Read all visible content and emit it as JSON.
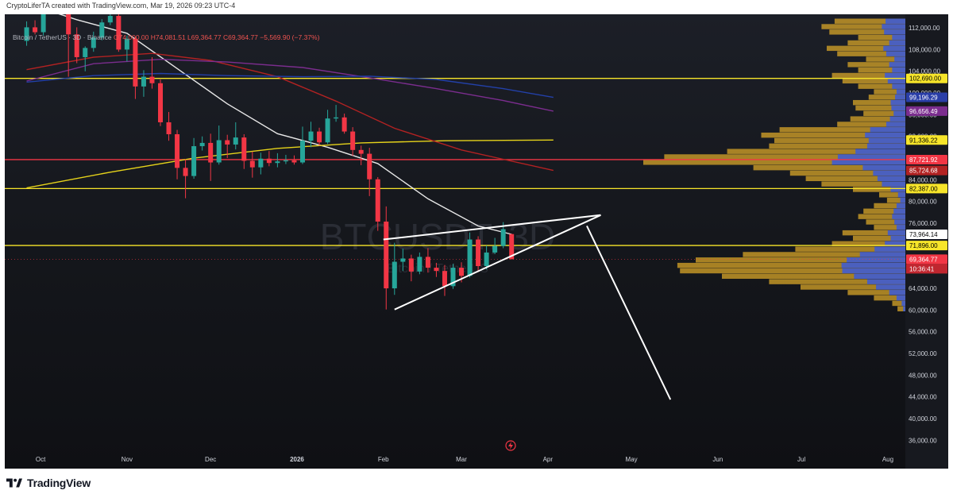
{
  "header": {
    "credit": "CryptoLiferTA created with TradingView.com, Mar 19, 2026 09:23 UTC-4"
  },
  "legend": {
    "symbol": "Bitcoin / TetherUS · 3D · Binance",
    "ohlc": "O74,000.00  H74,081.51  L69,364.77  C69,364.77  −5,569.90 (−7.37%)"
  },
  "watermark": {
    "ticker": "BTCUSDT, 3D",
    "subtitle": "Bitcoin / TetherUS"
  },
  "footer": {
    "brand": "TradingView"
  },
  "colors": {
    "bull": "#26a69a",
    "bear": "#f23645",
    "support_line": "#f7e52a",
    "red_line": "#f23645",
    "sma_white": "#e8e8e8",
    "ma_yellow": "#e6d31a",
    "ma_red": "#b22222",
    "ma_purple": "#7b2d8e",
    "ma_blue": "#2340a8",
    "volume_profile": "#d8a628",
    "volume_profile_blue": "#3b5bd9"
  },
  "chart_data": {
    "type": "candlestick",
    "symbol": "BTCUSDT",
    "timeframe": "3D",
    "exchange": "Binance",
    "x_labels": [
      {
        "label": "Oct",
        "date": "2025-10-01"
      },
      {
        "label": "Nov",
        "date": "2025-11-01"
      },
      {
        "label": "Dec",
        "date": "2025-12-01"
      },
      {
        "label": "2026",
        "date": "2026-01-01"
      },
      {
        "label": "Feb",
        "date": "2026-02-01"
      },
      {
        "label": "Mar",
        "date": "2026-03-01"
      },
      {
        "label": "Apr",
        "date": "2026-04-01"
      },
      {
        "label": "May",
        "date": "2026-05-01"
      },
      {
        "label": "Jun",
        "date": "2026-06-01"
      },
      {
        "label": "Jul",
        "date": "2026-07-01"
      },
      {
        "label": "Aug",
        "date": "2026-08-01"
      }
    ],
    "y_ticks": [
      112000,
      108000,
      104000,
      100000,
      96000,
      92000,
      88000,
      84000,
      80000,
      76000,
      72000,
      68000,
      64000,
      60000,
      56000,
      52000,
      48000,
      44000,
      40000,
      36000
    ],
    "ylim": [
      34000,
      114500
    ],
    "candles": [
      {
        "date": "2025-09-26",
        "o": 109600,
        "h": 113200,
        "l": 108700,
        "c": 112100
      },
      {
        "date": "2025-09-29",
        "o": 112100,
        "h": 113400,
        "l": 110800,
        "c": 111200
      },
      {
        "date": "2025-10-02",
        "o": 111200,
        "h": 117100,
        "l": 110600,
        "c": 116700
      },
      {
        "date": "2025-10-05",
        "o": 116700,
        "h": 117400,
        "l": 114900,
        "c": 116800
      },
      {
        "date": "2025-10-08",
        "o": 116800,
        "h": 118500,
        "l": 115200,
        "c": 115900
      },
      {
        "date": "2025-10-11",
        "o": 115900,
        "h": 116600,
        "l": 103000,
        "c": 110800
      },
      {
        "date": "2025-10-14",
        "o": 110800,
        "h": 112100,
        "l": 105500,
        "c": 106600
      },
      {
        "date": "2025-10-17",
        "o": 106600,
        "h": 108600,
        "l": 104000,
        "c": 108300
      },
      {
        "date": "2025-10-20",
        "o": 108300,
        "h": 111300,
        "l": 107600,
        "c": 110200
      },
      {
        "date": "2025-10-23",
        "o": 110200,
        "h": 113600,
        "l": 109700,
        "c": 113000
      },
      {
        "date": "2025-10-26",
        "o": 113000,
        "h": 116300,
        "l": 112500,
        "c": 114200
      },
      {
        "date": "2025-10-29",
        "o": 114200,
        "h": 115400,
        "l": 107600,
        "c": 108000
      },
      {
        "date": "2025-11-01",
        "o": 108000,
        "h": 110600,
        "l": 105800,
        "c": 110000
      },
      {
        "date": "2025-11-04",
        "o": 110000,
        "h": 110400,
        "l": 98900,
        "c": 101200
      },
      {
        "date": "2025-11-07",
        "o": 101200,
        "h": 104200,
        "l": 99300,
        "c": 103000
      },
      {
        "date": "2025-11-10",
        "o": 103000,
        "h": 106600,
        "l": 100800,
        "c": 101800
      },
      {
        "date": "2025-11-13",
        "o": 101800,
        "h": 102500,
        "l": 93900,
        "c": 94600
      },
      {
        "date": "2025-11-16",
        "o": 94600,
        "h": 96500,
        "l": 91200,
        "c": 92400
      },
      {
        "date": "2025-11-19",
        "o": 92400,
        "h": 93200,
        "l": 84100,
        "c": 86200
      },
      {
        "date": "2025-11-22",
        "o": 86200,
        "h": 87800,
        "l": 80600,
        "c": 84700
      },
      {
        "date": "2025-11-25",
        "o": 84700,
        "h": 91700,
        "l": 84200,
        "c": 90200
      },
      {
        "date": "2025-11-28",
        "o": 90200,
        "h": 92000,
        "l": 89400,
        "c": 90800
      },
      {
        "date": "2025-12-01",
        "o": 90800,
        "h": 92500,
        "l": 83800,
        "c": 87200
      },
      {
        "date": "2025-12-04",
        "o": 87200,
        "h": 94000,
        "l": 86800,
        "c": 91300
      },
      {
        "date": "2025-12-07",
        "o": 91300,
        "h": 92300,
        "l": 88000,
        "c": 90500
      },
      {
        "date": "2025-12-10",
        "o": 90500,
        "h": 94600,
        "l": 89600,
        "c": 91800
      },
      {
        "date": "2025-12-13",
        "o": 91800,
        "h": 92400,
        "l": 86000,
        "c": 87500
      },
      {
        "date": "2025-12-16",
        "o": 87500,
        "h": 89200,
        "l": 84400,
        "c": 86300
      },
      {
        "date": "2025-12-19",
        "o": 86300,
        "h": 89000,
        "l": 85000,
        "c": 87900
      },
      {
        "date": "2025-12-22",
        "o": 87900,
        "h": 89300,
        "l": 86500,
        "c": 87100
      },
      {
        "date": "2025-12-25",
        "o": 87100,
        "h": 88900,
        "l": 86300,
        "c": 87400
      },
      {
        "date": "2025-12-28",
        "o": 87400,
        "h": 88600,
        "l": 86900,
        "c": 87600
      },
      {
        "date": "2025-12-31",
        "o": 87600,
        "h": 88500,
        "l": 86800,
        "c": 87200
      },
      {
        "date": "2026-01-03",
        "o": 87200,
        "h": 93800,
        "l": 86900,
        "c": 91200
      },
      {
        "date": "2026-01-06",
        "o": 91200,
        "h": 94700,
        "l": 90000,
        "c": 92900
      },
      {
        "date": "2026-01-09",
        "o": 92900,
        "h": 93600,
        "l": 90300,
        "c": 90900
      },
      {
        "date": "2026-01-12",
        "o": 90900,
        "h": 96900,
        "l": 90600,
        "c": 95300
      },
      {
        "date": "2026-01-15",
        "o": 95300,
        "h": 97800,
        "l": 94700,
        "c": 95500
      },
      {
        "date": "2026-01-18",
        "o": 95500,
        "h": 96200,
        "l": 92500,
        "c": 92900
      },
      {
        "date": "2026-01-21",
        "o": 92900,
        "h": 93700,
        "l": 88400,
        "c": 89500
      },
      {
        "date": "2026-01-24",
        "o": 89500,
        "h": 90300,
        "l": 86700,
        "c": 88800
      },
      {
        "date": "2026-01-27",
        "o": 88800,
        "h": 89900,
        "l": 81000,
        "c": 84100
      },
      {
        "date": "2026-01-30",
        "o": 84100,
        "h": 84500,
        "l": 74600,
        "c": 76300
      },
      {
        "date": "2026-02-02",
        "o": 76300,
        "h": 79100,
        "l": 60100,
        "c": 64000
      },
      {
        "date": "2026-02-05",
        "o": 64000,
        "h": 72400,
        "l": 62800,
        "c": 68900
      },
      {
        "date": "2026-02-08",
        "o": 68900,
        "h": 71300,
        "l": 67200,
        "c": 69500
      },
      {
        "date": "2026-02-11",
        "o": 69500,
        "h": 70200,
        "l": 65300,
        "c": 67100
      },
      {
        "date": "2026-02-14",
        "o": 67100,
        "h": 70600,
        "l": 66600,
        "c": 69800
      },
      {
        "date": "2026-02-17",
        "o": 69800,
        "h": 71400,
        "l": 66900,
        "c": 67800
      },
      {
        "date": "2026-02-20",
        "o": 67800,
        "h": 68700,
        "l": 66100,
        "c": 67200
      },
      {
        "date": "2026-02-23",
        "o": 67200,
        "h": 68300,
        "l": 62600,
        "c": 64400
      },
      {
        "date": "2026-02-26",
        "o": 64400,
        "h": 68500,
        "l": 63900,
        "c": 67800
      },
      {
        "date": "2026-03-01",
        "o": 67800,
        "h": 68800,
        "l": 65100,
        "c": 66300
      },
      {
        "date": "2026-03-04",
        "o": 66300,
        "h": 74300,
        "l": 66000,
        "c": 73000
      },
      {
        "date": "2026-03-07",
        "o": 73000,
        "h": 73600,
        "l": 67000,
        "c": 68100
      },
      {
        "date": "2026-03-10",
        "o": 68100,
        "h": 71900,
        "l": 67500,
        "c": 70600
      },
      {
        "date": "2026-03-13",
        "o": 70600,
        "h": 73300,
        "l": 70300,
        "c": 71800
      },
      {
        "date": "2026-03-16",
        "o": 71800,
        "h": 76200,
        "l": 71400,
        "c": 74900
      },
      {
        "date": "2026-03-19",
        "o": 74000,
        "h": 74081.51,
        "l": 69364.77,
        "c": 69364.77
      }
    ],
    "horizontal_levels": [
      {
        "price": 102690,
        "color": "yellow"
      },
      {
        "price": 87721.92,
        "color": "red"
      },
      {
        "price": 82387,
        "color": "yellow"
      },
      {
        "price": 71896,
        "color": "yellow"
      }
    ],
    "price_labels": [
      {
        "text": "102,690.00",
        "price": 102690,
        "bg": "#f7e52a",
        "fg": "#000000"
      },
      {
        "text": "99,196.29",
        "price": 99196.29,
        "bg": "#2a3ea8",
        "fg": "#ffffff"
      },
      {
        "text": "96,656.49",
        "price": 96656.49,
        "bg": "#7b2d8e",
        "fg": "#ffffff"
      },
      {
        "text": "91,336.22",
        "price": 91336.22,
        "bg": "#f7e52a",
        "fg": "#000000"
      },
      {
        "text": "87,721.92",
        "price": 87721.92,
        "bg": "#f23645",
        "fg": "#ffffff"
      },
      {
        "text": "85,724.68",
        "price": 85724.68,
        "bg": "#b22222",
        "fg": "#ffffff"
      },
      {
        "text": "82,387.00",
        "price": 82387,
        "bg": "#f7e52a",
        "fg": "#000000"
      },
      {
        "text": "73,964.14",
        "price": 73964.14,
        "bg": "#ffffff",
        "fg": "#000000"
      },
      {
        "text": "71,896.00",
        "price": 71896,
        "bg": "#f7e52a",
        "fg": "#000000"
      },
      {
        "text": "69,364.77",
        "price": 69364.77,
        "bg": "#f23645",
        "fg": "#ffffff"
      }
    ],
    "countdown": "10:36:41",
    "moving_averages": [
      {
        "color": "white",
        "points": [
          [
            "2025-09-26",
            116500
          ],
          [
            "2025-10-14",
            113500
          ],
          [
            "2025-11-01",
            111000
          ],
          [
            "2025-11-19",
            104500
          ],
          [
            "2025-12-07",
            98000
          ],
          [
            "2025-12-25",
            92500
          ],
          [
            "2026-01-12",
            90000
          ],
          [
            "2026-01-30",
            87000
          ],
          [
            "2026-02-17",
            80500
          ],
          [
            "2026-03-07",
            75500
          ],
          [
            "2026-03-19",
            73964.14
          ]
        ]
      },
      {
        "color": "yellow",
        "points": [
          [
            "2025-09-26",
            82500
          ],
          [
            "2025-10-26",
            85400
          ],
          [
            "2025-11-25",
            88000
          ],
          [
            "2025-12-25",
            89800
          ],
          [
            "2026-01-24",
            90800
          ],
          [
            "2026-02-23",
            91200
          ],
          [
            "2026-04-03",
            91336.22
          ]
        ]
      },
      {
        "color": "red",
        "points": [
          [
            "2025-09-26",
            104300
          ],
          [
            "2025-10-20",
            106600
          ],
          [
            "2025-11-10",
            107300
          ],
          [
            "2025-12-01",
            106000
          ],
          [
            "2025-12-25",
            103000
          ],
          [
            "2026-01-15",
            98500
          ],
          [
            "2026-02-05",
            93500
          ],
          [
            "2026-03-01",
            89500
          ],
          [
            "2026-04-03",
            85724.68
          ]
        ]
      },
      {
        "color": "purple",
        "points": [
          [
            "2025-09-26",
            102200
          ],
          [
            "2025-10-20",
            105400
          ],
          [
            "2025-11-13",
            106200
          ],
          [
            "2025-12-07",
            105700
          ],
          [
            "2026-01-03",
            104700
          ],
          [
            "2026-01-27",
            102800
          ],
          [
            "2026-02-20",
            100800
          ],
          [
            "2026-03-16",
            98600
          ],
          [
            "2026-04-03",
            96656.49
          ]
        ]
      },
      {
        "color": "blue",
        "points": [
          [
            "2025-09-26",
            102000
          ],
          [
            "2025-10-20",
            103200
          ],
          [
            "2025-11-13",
            103600
          ],
          [
            "2025-12-07",
            103200
          ],
          [
            "2026-01-03",
            103000
          ],
          [
            "2026-01-27",
            103100
          ],
          [
            "2026-02-20",
            102500
          ],
          [
            "2026-03-16",
            100800
          ],
          [
            "2026-04-03",
            99196.29
          ]
        ]
      }
    ],
    "drawings": [
      {
        "type": "line",
        "color": "white",
        "from": [
          "2026-02-01",
          73000
        ],
        "to": [
          "2026-04-20",
          77500
        ]
      },
      {
        "type": "line",
        "color": "white",
        "from": [
          "2026-02-05",
          60100
        ],
        "to": [
          "2026-04-20",
          77500
        ]
      },
      {
        "type": "line",
        "color": "white",
        "from": [
          "2026-04-15",
          75500
        ],
        "to": [
          "2026-05-15",
          43500
        ]
      }
    ],
    "volume_profile": [
      {
        "price": 113200,
        "vol": 0.27
      },
      {
        "price": 112200,
        "vol": 0.32
      },
      {
        "price": 111200,
        "vol": 0.29
      },
      {
        "price": 110200,
        "vol": 0.18
      },
      {
        "price": 109200,
        "vol": 0.22
      },
      {
        "price": 108200,
        "vol": 0.3
      },
      {
        "price": 107200,
        "vol": 0.26
      },
      {
        "price": 106200,
        "vol": 0.15
      },
      {
        "price": 105200,
        "vol": 0.22
      },
      {
        "price": 104200,
        "vol": 0.18
      },
      {
        "price": 103200,
        "vol": 0.28
      },
      {
        "price": 102200,
        "vol": 0.24
      },
      {
        "price": 101200,
        "vol": 0.18
      },
      {
        "price": 100200,
        "vol": 0.12
      },
      {
        "price": 99200,
        "vol": 0.14
      },
      {
        "price": 98200,
        "vol": 0.2
      },
      {
        "price": 97200,
        "vol": 0.19
      },
      {
        "price": 96200,
        "vol": 0.16
      },
      {
        "price": 95200,
        "vol": 0.21
      },
      {
        "price": 94200,
        "vol": 0.26
      },
      {
        "price": 93200,
        "vol": 0.48
      },
      {
        "price": 92200,
        "vol": 0.55
      },
      {
        "price": 91200,
        "vol": 0.5
      },
      {
        "price": 90200,
        "vol": 0.52
      },
      {
        "price": 89200,
        "vol": 0.68
      },
      {
        "price": 88200,
        "vol": 0.92
      },
      {
        "price": 87200,
        "vol": 1.0
      },
      {
        "price": 86200,
        "vol": 0.58
      },
      {
        "price": 85200,
        "vol": 0.44
      },
      {
        "price": 84200,
        "vol": 0.38
      },
      {
        "price": 83200,
        "vol": 0.32
      },
      {
        "price": 82200,
        "vol": 0.2
      },
      {
        "price": 81200,
        "vol": 0.1
      },
      {
        "price": 80200,
        "vol": 0.07
      },
      {
        "price": 79200,
        "vol": 0.12
      },
      {
        "price": 78200,
        "vol": 0.16
      },
      {
        "price": 77200,
        "vol": 0.18
      },
      {
        "price": 76200,
        "vol": 0.15
      },
      {
        "price": 75200,
        "vol": 0.12
      },
      {
        "price": 74200,
        "vol": 0.24
      },
      {
        "price": 73200,
        "vol": 0.2
      },
      {
        "price": 72200,
        "vol": 0.28
      },
      {
        "price": 71200,
        "vol": 0.42
      },
      {
        "price": 70200,
        "vol": 0.62
      },
      {
        "price": 69200,
        "vol": 0.8
      },
      {
        "price": 68200,
        "vol": 0.87
      },
      {
        "price": 67200,
        "vol": 0.86
      },
      {
        "price": 66200,
        "vol": 0.7
      },
      {
        "price": 65200,
        "vol": 0.52
      },
      {
        "price": 64200,
        "vol": 0.4
      },
      {
        "price": 63200,
        "vol": 0.22
      },
      {
        "price": 62200,
        "vol": 0.12
      },
      {
        "price": 61200,
        "vol": 0.05
      },
      {
        "price": 60200,
        "vol": 0.03
      }
    ]
  }
}
